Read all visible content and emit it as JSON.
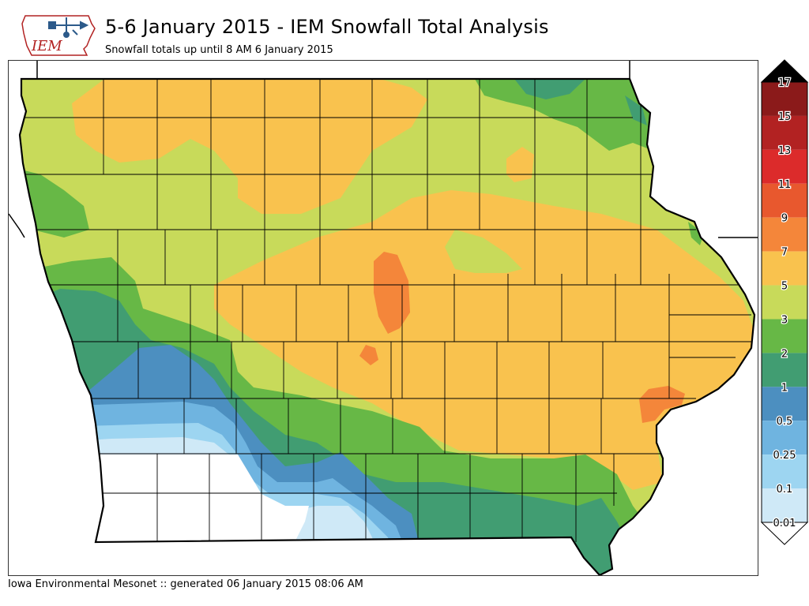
{
  "header": {
    "logo_text": "IEM",
    "title": "5-6 January 2015 - IEM Snowfall Total Analysis",
    "subtitle": "Snowfall totals up until 8 AM 6 January 2015"
  },
  "footer": {
    "text": "Iowa Environmental Mesonet :: generated 06 January 2015 08:06 AM"
  },
  "legend": {
    "labels": [
      "17",
      "15",
      "13",
      "11",
      "9",
      "7",
      "5",
      "3",
      "2",
      "1",
      "0.5",
      "0.25",
      "0.1",
      "0.01"
    ],
    "colors": [
      "#8b1a1a",
      "#b22222",
      "#dc2b2b",
      "#e8582e",
      "#f4863a",
      "#f9c24e",
      "#c8da5a",
      "#67b846",
      "#419d72",
      "#4c8fc0",
      "#6fb4e0",
      "#9dd5f1",
      "#cfe9f7"
    ],
    "over_color": "#000000",
    "under_color": "#ffffff"
  },
  "map": {
    "region": "Iowa",
    "palette": {
      "none": "#ffffff",
      "trace": "#cfe9f7",
      "light_blue": "#9dd5f1",
      "mid_blue": "#6fb4e0",
      "blue": "#4c8fc0",
      "teal": "#419d72",
      "green": "#67b846",
      "yellow_green": "#c8da5a",
      "gold": "#f9c24e",
      "orange": "#f4863a"
    }
  }
}
